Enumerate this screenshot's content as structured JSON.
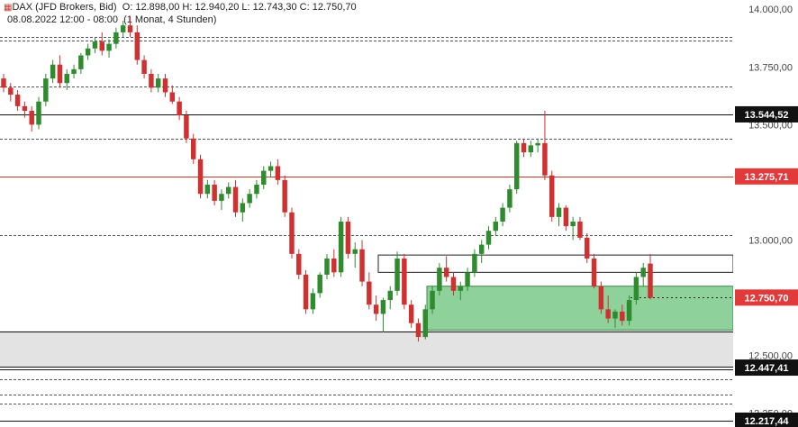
{
  "header": {
    "instrument": "DAX (JFD Brokers, Bid)",
    "ohlc": "O: 12.898,00  H: 12.940,20  L: 12.743,30  C: 12.750,70",
    "period": "08.08.2022 12:00 - 08:00",
    "timeframe": "(1 Monat, 4 Stunden)"
  },
  "chart_data": {
    "type": "candlestick",
    "y_axis": {
      "min": 12190,
      "max": 14040,
      "ticks": [
        "14.000,00",
        "13.750,00",
        "13.500,00",
        "13.000,00",
        "12.500,00",
        "12.250,00"
      ]
    },
    "price_labels": [
      {
        "value": 13544.52,
        "label": "13.544,52",
        "style": "dark"
      },
      {
        "value": 13275.71,
        "label": "13.275,71",
        "style": "red"
      },
      {
        "value": 12750.7,
        "label": "12.750,70",
        "style": "red"
      },
      {
        "value": 12447.41,
        "label": "12.447,41",
        "style": "dark"
      },
      {
        "value": 12217.44,
        "label": "12.217,44",
        "style": "dark"
      }
    ],
    "h_lines": [
      {
        "value": 13880,
        "style": "dash"
      },
      {
        "value": 13865,
        "style": "dash"
      },
      {
        "value": 13665,
        "style": "dash"
      },
      {
        "value": 13544.52,
        "style": "solid-black"
      },
      {
        "value": 13440,
        "style": "dash"
      },
      {
        "value": 13275.71,
        "style": "solid-red"
      },
      {
        "value": 13020,
        "style": "dash"
      },
      {
        "value": 12750.7,
        "style": "dot-black"
      },
      {
        "value": 12605,
        "style": "solid-black"
      },
      {
        "value": 12450,
        "style": "solid-black"
      },
      {
        "value": 12440,
        "style": "solid-black"
      },
      {
        "value": 12395,
        "style": "dash"
      },
      {
        "value": 12330,
        "style": "dash"
      },
      {
        "value": 12290,
        "style": "dash"
      },
      {
        "value": 12217.44,
        "style": "solid-black"
      }
    ],
    "candles": [
      [
        13700,
        13720,
        13640,
        13660
      ],
      [
        13660,
        13680,
        13600,
        13630
      ],
      [
        13630,
        13650,
        13560,
        13580
      ],
      [
        13580,
        13600,
        13530,
        13560
      ],
      [
        13560,
        13580,
        13470,
        13500
      ],
      [
        13500,
        13620,
        13480,
        13600
      ],
      [
        13600,
        13720,
        13580,
        13700
      ],
      [
        13700,
        13780,
        13680,
        13760
      ],
      [
        13760,
        13800,
        13660,
        13680
      ],
      [
        13680,
        13740,
        13650,
        13720
      ],
      [
        13720,
        13760,
        13700,
        13740
      ],
      [
        13740,
        13810,
        13720,
        13800
      ],
      [
        13800,
        13850,
        13780,
        13830
      ],
      [
        13830,
        13880,
        13810,
        13860
      ],
      [
        13860,
        13900,
        13800,
        13820
      ],
      [
        13820,
        13870,
        13790,
        13850
      ],
      [
        13850,
        13920,
        13830,
        13900
      ],
      [
        13900,
        13950,
        13880,
        13930
      ],
      [
        13930,
        13970,
        13880,
        13900
      ],
      [
        13900,
        13930,
        13760,
        13780
      ],
      [
        13780,
        13800,
        13700,
        13720
      ],
      [
        13720,
        13740,
        13640,
        13660
      ],
      [
        13660,
        13720,
        13640,
        13700
      ],
      [
        13700,
        13720,
        13620,
        13640
      ],
      [
        13640,
        13670,
        13590,
        13600
      ],
      [
        13600,
        13620,
        13520,
        13540
      ],
      [
        13540,
        13560,
        13420,
        13440
      ],
      [
        13440,
        13460,
        13330,
        13350
      ],
      [
        13350,
        13370,
        13180,
        13200
      ],
      [
        13200,
        13260,
        13180,
        13240
      ],
      [
        13240,
        13260,
        13150,
        13170
      ],
      [
        13170,
        13220,
        13130,
        13200
      ],
      [
        13200,
        13250,
        13180,
        13230
      ],
      [
        13230,
        13260,
        13100,
        13120
      ],
      [
        13120,
        13180,
        13080,
        13160
      ],
      [
        13160,
        13220,
        13140,
        13200
      ],
      [
        13200,
        13260,
        13180,
        13240
      ],
      [
        13240,
        13320,
        13220,
        13300
      ],
      [
        13300,
        13340,
        13270,
        13320
      ],
      [
        13320,
        13350,
        13240,
        13260
      ],
      [
        13260,
        13280,
        13100,
        13120
      ],
      [
        13120,
        13140,
        12920,
        12940
      ],
      [
        12940,
        12960,
        12830,
        12850
      ],
      [
        12850,
        12870,
        12680,
        12700
      ],
      [
        12700,
        12790,
        12680,
        12770
      ],
      [
        12770,
        12860,
        12750,
        12850
      ],
      [
        12850,
        12940,
        12830,
        12920
      ],
      [
        12920,
        12960,
        12840,
        12860
      ],
      [
        12860,
        13100,
        12840,
        13080
      ],
      [
        13080,
        13100,
        12920,
        12940
      ],
      [
        12940,
        12990,
        12880,
        12960
      ],
      [
        12960,
        13000,
        12800,
        12820
      ],
      [
        12820,
        12860,
        12700,
        12720
      ],
      [
        12720,
        12760,
        12650,
        12680
      ],
      [
        12680,
        12750,
        12600,
        12740
      ],
      [
        12740,
        12800,
        12700,
        12780
      ],
      [
        12780,
        12950,
        12760,
        12920
      ],
      [
        12920,
        12940,
        12700,
        12720
      ],
      [
        12720,
        12740,
        12620,
        12640
      ],
      [
        12640,
        12660,
        12560,
        12580
      ],
      [
        12580,
        12720,
        12570,
        12700
      ],
      [
        12700,
        12800,
        12680,
        12780
      ],
      [
        12780,
        12900,
        12760,
        12880
      ],
      [
        12880,
        12930,
        12820,
        12840
      ],
      [
        12840,
        12860,
        12760,
        12780
      ],
      [
        12780,
        12820,
        12740,
        12800
      ],
      [
        12800,
        12880,
        12780,
        12860
      ],
      [
        12860,
        12960,
        12840,
        12940
      ],
      [
        12940,
        13000,
        12900,
        12980
      ],
      [
        12980,
        13060,
        12960,
        13040
      ],
      [
        13040,
        13100,
        13020,
        13080
      ],
      [
        13080,
        13160,
        13060,
        13140
      ],
      [
        13140,
        13240,
        13120,
        13220
      ],
      [
        13220,
        13430,
        13200,
        13420
      ],
      [
        13420,
        13440,
        13360,
        13380
      ],
      [
        13380,
        13430,
        13360,
        13410
      ],
      [
        13410,
        13440,
        13380,
        13420
      ],
      [
        13420,
        13560,
        13260,
        13280
      ],
      [
        13280,
        13300,
        13080,
        13100
      ],
      [
        13100,
        13160,
        13060,
        13140
      ],
      [
        13140,
        13150,
        13040,
        13060
      ],
      [
        13060,
        13100,
        13000,
        13080
      ],
      [
        13080,
        13100,
        13000,
        13010
      ],
      [
        13010,
        13030,
        12900,
        12920
      ],
      [
        12920,
        12940,
        12790,
        12800
      ],
      [
        12800,
        12820,
        12680,
        12700
      ],
      [
        12700,
        12760,
        12640,
        12660
      ],
      [
        12660,
        12700,
        12620,
        12690
      ],
      [
        12690,
        12720,
        12630,
        12650
      ],
      [
        12650,
        12760,
        12630,
        12740
      ],
      [
        12740,
        12860,
        12720,
        12840
      ],
      [
        12840,
        12900,
        12800,
        12880
      ],
      [
        12898,
        12940,
        12743,
        12750
      ]
    ],
    "zones": [
      {
        "type": "green-box",
        "from": 12800,
        "to": 12610
      },
      {
        "type": "outline-box",
        "from": 12935,
        "to": 12860
      },
      {
        "type": "gray-band",
        "from": 12605,
        "to": 12450
      }
    ],
    "colors": {
      "up": "#2e8b2e",
      "down": "#d03030",
      "zone_green": "#8fd19a",
      "red_line": "#c0392b",
      "label_dark": "#111111",
      "label_red": "#e23a3a",
      "gray_band": "#e3e3e3"
    }
  }
}
